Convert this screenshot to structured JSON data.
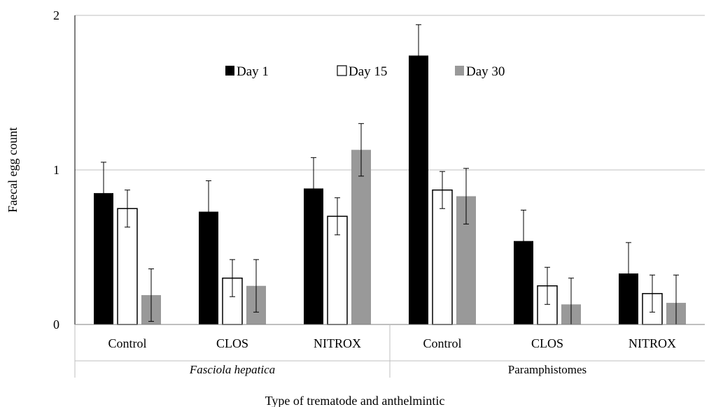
{
  "chart_data": {
    "type": "bar",
    "title": "",
    "xlabel": "Type of trematode and anthelmintic",
    "ylabel": "Faecal egg count",
    "ylim": [
      0,
      2
    ],
    "yticks": [
      "0",
      "1",
      "2"
    ],
    "grid": true,
    "legend_position": "top-center",
    "groups": [
      {
        "label": "Fasciola hepatica",
        "italic": true,
        "categories": [
          "Control",
          "CLOS",
          "NITROX"
        ]
      },
      {
        "label": "Paramphistomes",
        "italic": false,
        "categories": [
          "Control",
          "CLOS",
          "NITROX"
        ]
      }
    ],
    "series": [
      {
        "name": "Day 1",
        "color": "#000000",
        "values": [
          0.85,
          0.73,
          0.88,
          1.74,
          0.54,
          0.33
        ],
        "errors": [
          0.2,
          0.2,
          0.2,
          0.2,
          0.2,
          0.2
        ]
      },
      {
        "name": "Day 15",
        "color": "#ffffff",
        "values": [
          0.75,
          0.3,
          0.7,
          0.87,
          0.25,
          0.2
        ],
        "errors": [
          0.12,
          0.12,
          0.12,
          0.12,
          0.12,
          0.12
        ]
      },
      {
        "name": "Day 30",
        "color": "#999999",
        "values": [
          0.19,
          0.25,
          1.13,
          0.83,
          0.13,
          0.14
        ],
        "errors": [
          0.17,
          0.17,
          0.17,
          0.18,
          0.17,
          0.18
        ]
      }
    ]
  }
}
